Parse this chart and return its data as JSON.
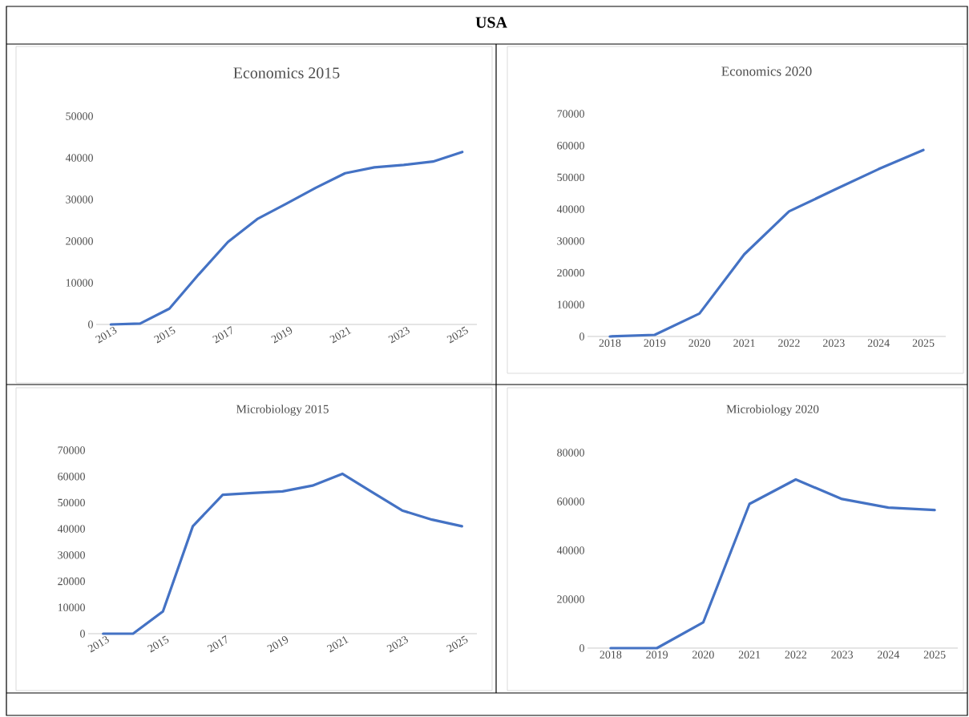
{
  "chart_data": [
    {
      "type": "line",
      "title": "Economics 2015",
      "annotations": [
        "USA"
      ],
      "categories": [
        "2013",
        null,
        "2015",
        null,
        "2017",
        null,
        "2019",
        null,
        "2021",
        null,
        "2023",
        null,
        "2025"
      ],
      "values": [
        0,
        200,
        3800,
        12000,
        19800,
        25300,
        29000,
        32800,
        36300,
        37700,
        38300,
        39100,
        41400
      ],
      "color": "#4472c4",
      "ylim": [
        0,
        50000
      ],
      "yticks": [
        0,
        10000,
        20000,
        30000,
        40000,
        50000
      ]
    },
    {
      "type": "line",
      "title": "Economics  2020",
      "categories": [
        "2018",
        "2019",
        "2020",
        "2021",
        "2022",
        "2023",
        "2024",
        "2025"
      ],
      "values": [
        0,
        500,
        7200,
        25800,
        39300,
        46000,
        52600,
        58600
      ],
      "color": "#4472c4",
      "ylim": [
        0,
        70000
      ],
      "yticks": [
        0,
        10000,
        20000,
        30000,
        40000,
        50000,
        60000,
        70000
      ]
    },
    {
      "type": "line",
      "title": "Microbiology 2015",
      "categories": [
        "2013",
        null,
        "2015",
        null,
        "2017",
        null,
        "2019",
        null,
        "2021",
        null,
        "2023",
        null,
        "2025"
      ],
      "values": [
        0,
        0,
        8500,
        41000,
        53000,
        53700,
        54300,
        56500,
        61000,
        54000,
        47000,
        43500,
        41000
      ],
      "color": "#4472c4",
      "ylim": [
        0,
        70000
      ],
      "yticks": [
        0,
        10000,
        20000,
        30000,
        40000,
        50000,
        60000,
        70000
      ]
    },
    {
      "type": "line",
      "title": "Microbiology 2020",
      "categories": [
        "2018",
        "2019",
        "2020",
        "2021",
        "2022",
        "2023",
        "2024",
        "2025"
      ],
      "values": [
        0,
        0,
        10500,
        59000,
        69000,
        61000,
        57500,
        56500
      ],
      "color": "#4472c4",
      "ylim": [
        0,
        80000
      ],
      "yticks": [
        0,
        20000,
        40000,
        60000,
        80000
      ]
    }
  ]
}
